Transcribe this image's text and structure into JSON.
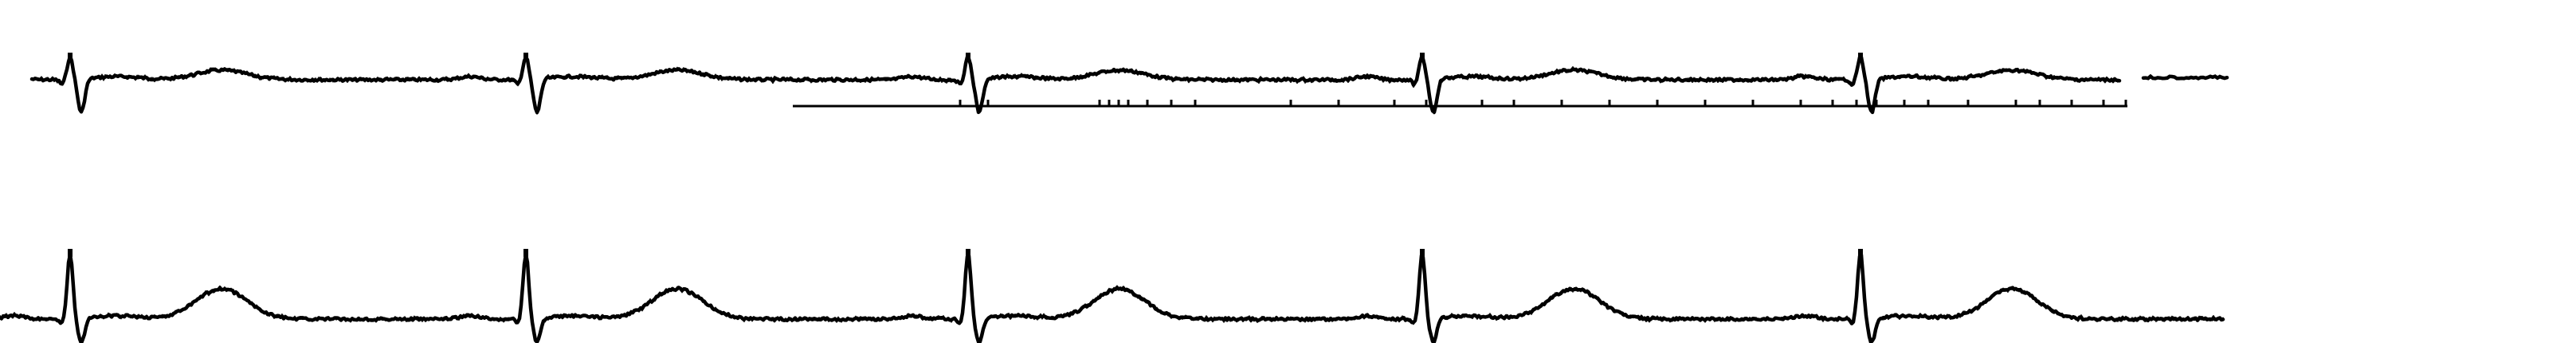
{
  "figure": {
    "kind": "ecg-rhythm-strip",
    "ink_color": "#000000",
    "background_color": "#ffffff",
    "rows": [
      {
        "id": "row-1",
        "beats": 5,
        "has_reference_line": true,
        "has_trailing_fragment": true
      },
      {
        "id": "row-2",
        "beats": 5,
        "has_reference_line": false,
        "has_trailing_fragment": false
      }
    ]
  }
}
